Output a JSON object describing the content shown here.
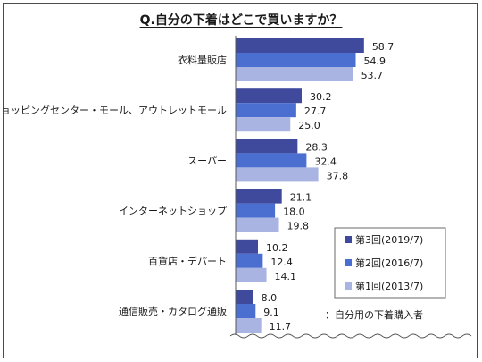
{
  "chart_data": {
    "type": "bar",
    "orientation": "horizontal",
    "title": "Q.自分の下着はどこで買いますか？",
    "categories": [
      "衣料量販店",
      "ショッピングセンター・モール、アウトレットモール",
      "スーパー",
      "インターネットショップ",
      "百貨店・デパート",
      "通信販売・カタログ通販"
    ],
    "series": [
      {
        "name": "第3回(2019/7)",
        "values": [
          58.7,
          30.2,
          28.3,
          21.1,
          10.2,
          8.0
        ],
        "color": "#3f4a9c"
      },
      {
        "name": "第2回(2016/7)",
        "values": [
          54.9,
          27.7,
          32.4,
          18.0,
          12.4,
          9.1
        ],
        "color": "#4a6fd0"
      },
      {
        "name": "第1回(2013/7)",
        "values": [
          53.7,
          25.0,
          37.8,
          19.8,
          14.1,
          11.7
        ],
        "color": "#a9b4e2"
      }
    ],
    "legend_position": "bottom-right",
    "note": "：自分用の下着購入者",
    "xlim": [
      0,
      100
    ],
    "grid": false,
    "value_axis_break": true
  }
}
